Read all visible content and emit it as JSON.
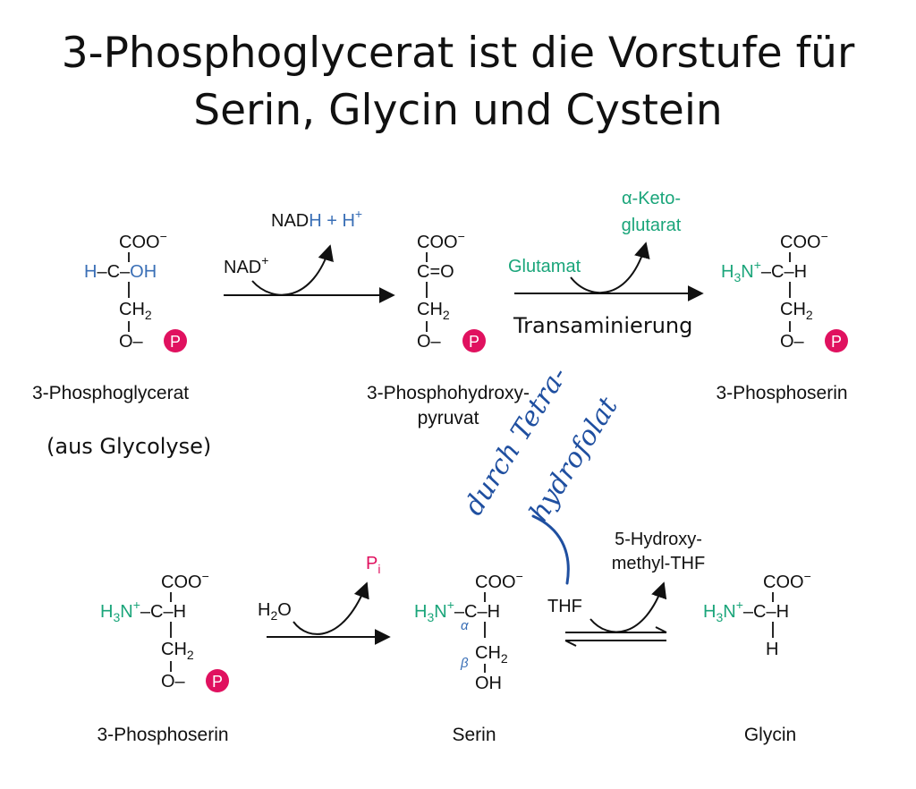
{
  "slide": {
    "title_line1": "3-Phosphoglycerat ist die Vorstufe für",
    "title_line2": "Serin, Glycin und Cystein"
  },
  "molecules": {
    "phosphoglycerat": {
      "coo": "COO",
      "h": "H",
      "c_dash": "–C–",
      "oh": "OH",
      "ch2": "CH",
      "o_dash": "O–",
      "p": "P",
      "name": "3-Phosphoglycerat",
      "note": "(aus Glycolyse)"
    },
    "phosphohydroxypyruvat": {
      "coo": "COO",
      "c_eq_o": "C=O",
      "ch2": "CH",
      "o_dash": "O–",
      "p": "P",
      "name_line1": "3-Phosphohydroxy-",
      "name_line2": "pyruvat"
    },
    "phosphoserin_top": {
      "coo": "COO",
      "h3n": "H",
      "c_h": "–C–H",
      "ch2": "CH",
      "o_dash": "O–",
      "p": "P",
      "name": "3-Phosphoserin"
    },
    "phosphoserin_bottom": {
      "coo": "COO",
      "h3n": "H",
      "c_h": "–C–H",
      "ch2": "CH",
      "o_dash": "O–",
      "p": "P",
      "name": "3-Phosphoserin"
    },
    "serin": {
      "coo": "COO",
      "h3n": "H",
      "c_h": "–C–H",
      "alpha": "α",
      "beta": "β",
      "ch2": "CH",
      "oh": "OH",
      "name": "Serin"
    },
    "glycin": {
      "coo": "COO",
      "h3n": "H",
      "c_h": "–C–H",
      "h": "H",
      "name": "Glycin"
    }
  },
  "reactions": {
    "r1": {
      "nad": "NAD",
      "nadh": "NAD",
      "h_blue": "H + H"
    },
    "r2": {
      "glutamat": "Glutamat",
      "keto_line1": "α-Keto-",
      "keto_line2": "glutarat",
      "label": "Transaminierung"
    },
    "r3": {
      "h2o": "H",
      "o": "O",
      "pi": "P"
    },
    "r4": {
      "thf": "THF",
      "product_line1": "5-Hydroxy-",
      "product_line2": "methyl-THF"
    }
  },
  "annotation": {
    "line1": "durch Tetra-",
    "line2": "hydrofolat"
  },
  "colors": {
    "blue": "#3a6fb6",
    "green": "#1aa57a",
    "phosphate": "#e0115f",
    "ink": "#1f4fa0"
  }
}
